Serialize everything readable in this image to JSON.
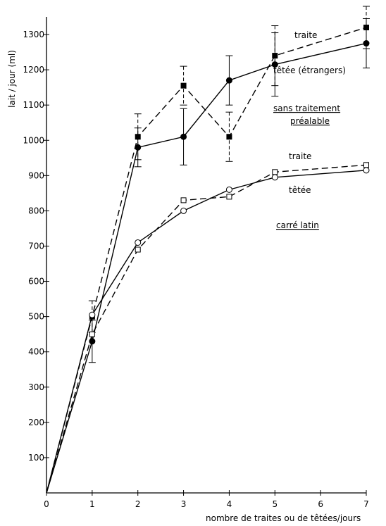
{
  "chart_data": {
    "type": "line",
    "xlabel": "nombre de traites ou de têtées/jours",
    "ylabel": "lait / jour (ml)",
    "xlim": [
      0,
      7
    ],
    "ylim": [
      0,
      1350
    ],
    "x_ticks": [
      0,
      1,
      2,
      3,
      4,
      5,
      6,
      7
    ],
    "y_ticks": [
      100,
      200,
      300,
      400,
      500,
      600,
      700,
      800,
      900,
      1000,
      1100,
      1200,
      1300
    ],
    "grid": false,
    "legend": "none",
    "series": [
      {
        "name": "traite",
        "group": "sans traitement préalable",
        "marker": "filled-square",
        "dash": "dashed",
        "points": [
          [
            0,
            0
          ],
          [
            1,
            500
          ],
          [
            2,
            1010
          ],
          [
            3,
            1155
          ],
          [
            4,
            1010
          ],
          [
            5,
            1240
          ],
          [
            7,
            1320
          ]
        ],
        "errors": [
          0,
          45,
          65,
          55,
          70,
          85,
          60
        ]
      },
      {
        "name": "têtée (étrangers)",
        "group": "sans traitement préalable",
        "marker": "filled-circle",
        "dash": "solid",
        "points": [
          [
            0,
            0
          ],
          [
            1,
            430
          ],
          [
            2,
            980
          ],
          [
            3,
            1010
          ],
          [
            4,
            1170
          ],
          [
            5,
            1215
          ],
          [
            7,
            1275
          ]
        ],
        "errors": [
          0,
          60,
          55,
          80,
          70,
          90,
          70
        ]
      },
      {
        "name": "traite",
        "group": "carré latin",
        "marker": "open-square",
        "dash": "dashed",
        "points": [
          [
            0,
            0
          ],
          [
            1,
            450
          ],
          [
            2,
            690
          ],
          [
            3,
            830
          ],
          [
            4,
            840
          ],
          [
            5,
            910
          ],
          [
            7,
            930
          ]
        ],
        "errors": []
      },
      {
        "name": "têtée",
        "group": "carré latin",
        "marker": "open-circle",
        "dash": "solid",
        "points": [
          [
            0,
            0
          ],
          [
            1,
            505
          ],
          [
            2,
            710
          ],
          [
            3,
            800
          ],
          [
            4,
            860
          ],
          [
            5,
            895
          ],
          [
            7,
            915
          ]
        ],
        "errors": []
      }
    ],
    "annotations": {
      "traite_top": "traite",
      "tetee_top": "têtée (étrangers)",
      "group_top_1": "sans traitement",
      "group_top_2": "préalable",
      "traite_bottom": "traite",
      "tetee_bottom": "têtée",
      "group_bottom": "carré latin"
    }
  }
}
